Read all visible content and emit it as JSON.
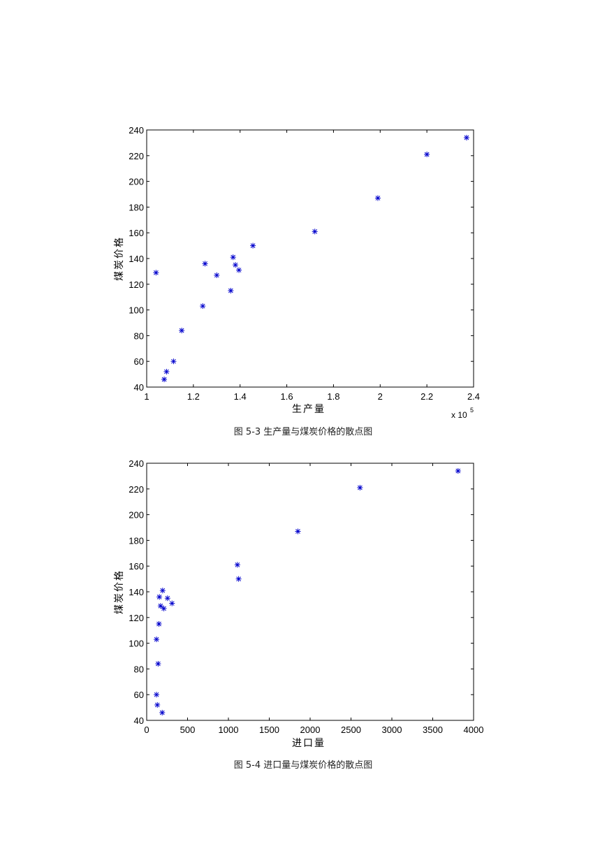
{
  "chart_data": [
    {
      "type": "scatter",
      "xlabel": "生产量",
      "ylabel": "煤炭价格",
      "caption": "图 5-3  生产量与煤炭价格的散点图",
      "xlim": [
        1,
        2.4
      ],
      "ylim": [
        40,
        240
      ],
      "x_ticks": [
        "1",
        "1.2",
        "1.4",
        "1.6",
        "1.8",
        "2",
        "2.2",
        "2.4"
      ],
      "y_ticks": [
        "40",
        "60",
        "80",
        "100",
        "120",
        "140",
        "160",
        "180",
        "200",
        "220",
        "240"
      ],
      "x_multiplier": "x 10",
      "x_multiplier_exp": "5",
      "marker": "*",
      "color": "#0000cc",
      "points": [
        {
          "x": 1.04,
          "y": 129
        },
        {
          "x": 1.075,
          "y": 46
        },
        {
          "x": 1.085,
          "y": 52
        },
        {
          "x": 1.115,
          "y": 60
        },
        {
          "x": 1.15,
          "y": 84
        },
        {
          "x": 1.24,
          "y": 103
        },
        {
          "x": 1.25,
          "y": 136
        },
        {
          "x": 1.3,
          "y": 127
        },
        {
          "x": 1.36,
          "y": 115
        },
        {
          "x": 1.37,
          "y": 141
        },
        {
          "x": 1.38,
          "y": 135
        },
        {
          "x": 1.395,
          "y": 131
        },
        {
          "x": 1.455,
          "y": 150
        },
        {
          "x": 1.72,
          "y": 161
        },
        {
          "x": 1.99,
          "y": 187
        },
        {
          "x": 2.2,
          "y": 221
        },
        {
          "x": 2.37,
          "y": 234
        }
      ]
    },
    {
      "type": "scatter",
      "xlabel": "进口量",
      "ylabel": "煤炭价格",
      "caption": "图 5-4  进口量与煤炭价格的散点图",
      "xlim": [
        0,
        4000
      ],
      "ylim": [
        40,
        240
      ],
      "x_ticks": [
        "0",
        "500",
        "1000",
        "1500",
        "2000",
        "2500",
        "3000",
        "3500",
        "4000"
      ],
      "y_ticks": [
        "40",
        "60",
        "80",
        "100",
        "120",
        "140",
        "160",
        "180",
        "200",
        "220",
        "240"
      ],
      "marker": "*",
      "color": "#0000cc",
      "points": [
        {
          "x": 120,
          "y": 103
        },
        {
          "x": 120,
          "y": 60
        },
        {
          "x": 130,
          "y": 52
        },
        {
          "x": 140,
          "y": 84
        },
        {
          "x": 150,
          "y": 115
        },
        {
          "x": 155,
          "y": 136
        },
        {
          "x": 170,
          "y": 129
        },
        {
          "x": 190,
          "y": 46
        },
        {
          "x": 195,
          "y": 141
        },
        {
          "x": 210,
          "y": 127
        },
        {
          "x": 255,
          "y": 135
        },
        {
          "x": 310,
          "y": 131
        },
        {
          "x": 1110,
          "y": 161
        },
        {
          "x": 1125,
          "y": 150
        },
        {
          "x": 1850,
          "y": 187
        },
        {
          "x": 2610,
          "y": 221
        },
        {
          "x": 3810,
          "y": 234
        }
      ]
    }
  ]
}
